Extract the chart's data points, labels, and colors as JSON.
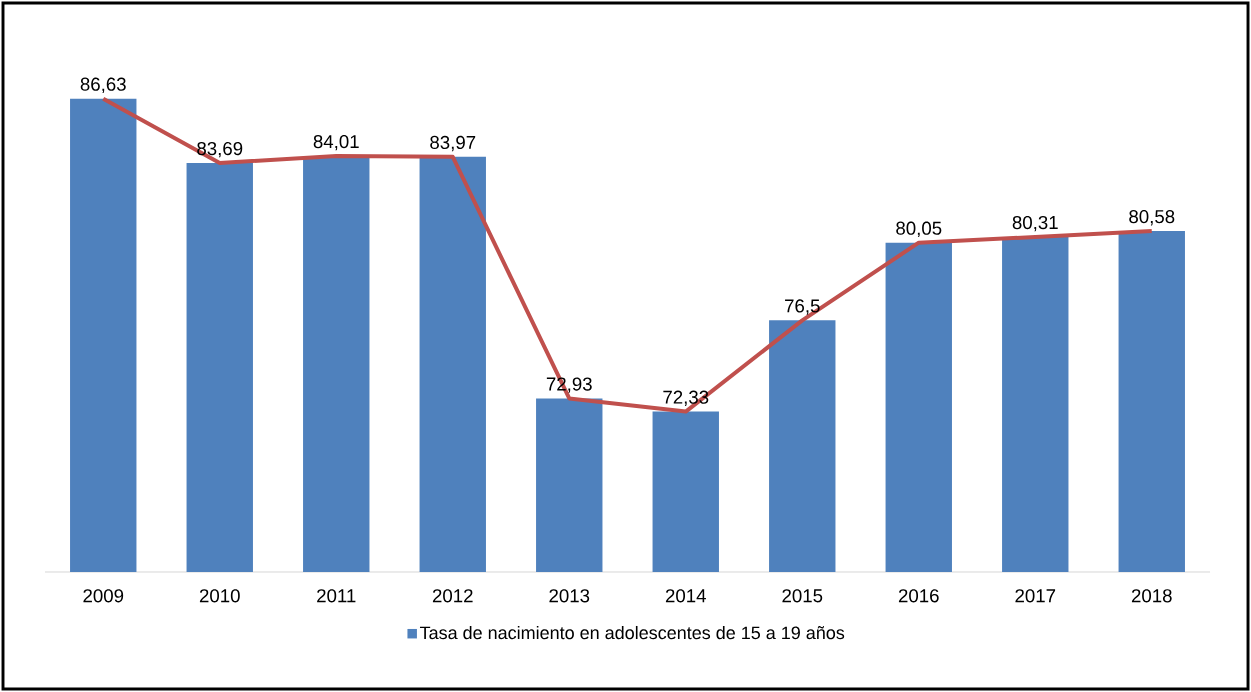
{
  "chart_data": {
    "type": "bar",
    "categories": [
      "2009",
      "2010",
      "2011",
      "2012",
      "2013",
      "2014",
      "2015",
      "2016",
      "2017",
      "2018"
    ],
    "series": [
      {
        "name": "Tasa de nacimiento en adolescentes de 15 a 19 años",
        "color": "#4f81bd",
        "values": [
          86.63,
          83.69,
          84.01,
          83.97,
          72.93,
          72.33,
          76.5,
          80.05,
          80.31,
          80.58
        ],
        "value_labels": [
          "86,63",
          "83,69",
          "84,01",
          "83,97",
          "72,93",
          "72,33",
          "76,5",
          "80,05",
          "80,31",
          "80,58"
        ]
      },
      {
        "type": "line",
        "color": "#c0504d",
        "values": [
          86.63,
          83.69,
          84.01,
          83.97,
          72.93,
          72.33,
          76.5,
          80.05,
          80.31,
          80.58
        ]
      }
    ],
    "ylim": [
      65,
      91
    ],
    "legend": "bottom",
    "grid": false,
    "marker": "none",
    "line_style": "solid"
  }
}
